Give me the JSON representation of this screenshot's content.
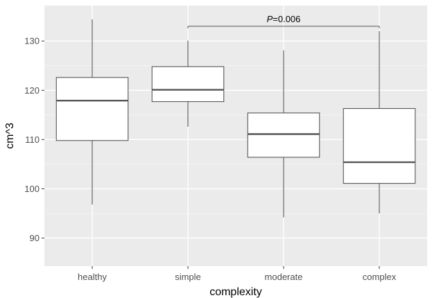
{
  "chart_data": {
    "type": "box",
    "xlabel": "complexity",
    "ylabel": "cm^3",
    "categories": [
      "healthy",
      "simple",
      "moderate",
      "complex"
    ],
    "ylim": [
      84.3,
      137.2
    ],
    "yticks": [
      90,
      100,
      110,
      120,
      130
    ],
    "grid": true,
    "boxes": [
      {
        "category": "healthy",
        "whisker_low": 96.8,
        "q1": 109.8,
        "median": 117.9,
        "q3": 122.6,
        "whisker_high": 134.4
      },
      {
        "category": "simple",
        "whisker_low": 112.6,
        "q1": 117.7,
        "median": 120.1,
        "q3": 124.8,
        "whisker_high": 130.1
      },
      {
        "category": "moderate",
        "whisker_low": 94.2,
        "q1": 106.4,
        "median": 111.1,
        "q3": 115.4,
        "whisker_high": 128.1
      },
      {
        "category": "complex",
        "whisker_low": 95.0,
        "q1": 101.1,
        "median": 105.4,
        "q3": 116.3,
        "whisker_high": 132.0
      }
    ],
    "annotations": [
      {
        "label_prefix": "P",
        "label_value": "=0.006",
        "from": "simple",
        "to": "complex",
        "y": 133.0
      }
    ],
    "colors": {
      "panel": "#ebebeb",
      "grid_major": "#ffffff",
      "grid_minor": "#f5f5f5",
      "box_fill": "#ffffff",
      "box_stroke": "#555555",
      "median": "#555555"
    }
  }
}
